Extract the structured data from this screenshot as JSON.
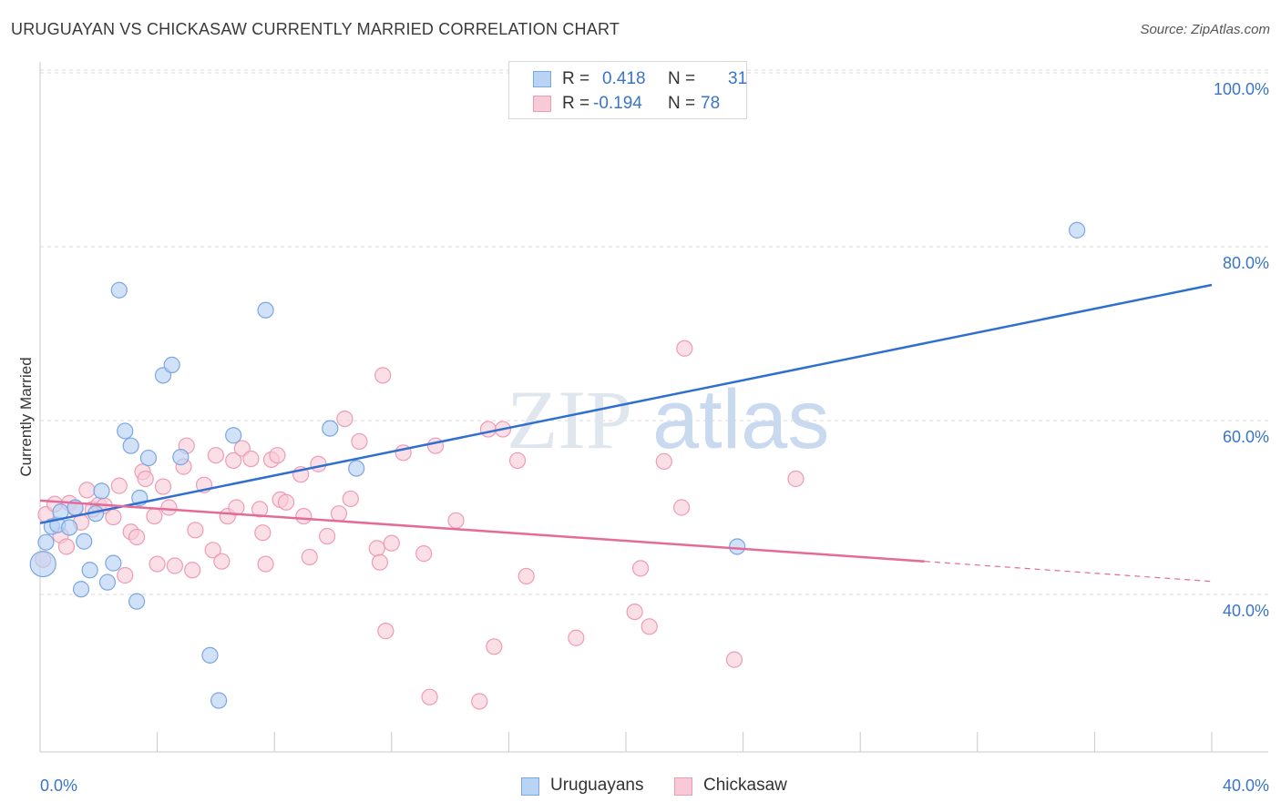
{
  "header": {
    "title": "URUGUAYAN VS CHICKASAW CURRENTLY MARRIED CORRELATION CHART",
    "source": "Source: ZipAtlas.com"
  },
  "watermark": {
    "zip": "ZIP",
    "atlas": "atlas"
  },
  "legend": {
    "rows": [
      {
        "r_label": "R =",
        "r_value": "0.418",
        "n_label": "N =",
        "n_value": "31"
      },
      {
        "r_label": "R =",
        "r_value": "-0.194",
        "n_label": "N =",
        "n_value": "78"
      }
    ]
  },
  "bottom_legend": {
    "items": [
      {
        "label": "Uruguayans"
      },
      {
        "label": "Chickasaw"
      }
    ]
  },
  "colors": {
    "blue_fill": "#b9d3f5",
    "blue_stroke": "#7aa6e2",
    "blue_line": "#2f6fcf",
    "pink_fill": "#f8c9d7",
    "pink_stroke": "#ee9bb4",
    "pink_line": "#e46b98",
    "tick_text": "#3a74c9",
    "grid": "#d9d9d9"
  },
  "chart_data": {
    "type": "scatter",
    "title": "URUGUAYAN VS CHICKASAW CURRENTLY MARRIED CORRELATION CHART",
    "xlabel": "",
    "ylabel": "Currently Married",
    "xlim": [
      0,
      40
    ],
    "ylim": [
      20,
      103
    ],
    "x_tick_labels": [
      "0.0%",
      "40.0%"
    ],
    "y_ticks": [
      40,
      60,
      80,
      100
    ],
    "y_tick_labels": [
      "40.0%",
      "60.0%",
      "80.0%",
      "100.0%"
    ],
    "grid": true,
    "legend_position": "top-center",
    "series": [
      {
        "name": "Uruguayans",
        "r": 0.418,
        "n": 31,
        "trend": {
          "x": [
            0,
            40
          ],
          "y": [
            48.2,
            75.6
          ]
        },
        "points": [
          [
            0.1,
            43.5
          ],
          [
            0.2,
            46.0
          ],
          [
            0.4,
            47.8
          ],
          [
            0.6,
            48.0
          ],
          [
            0.7,
            49.5
          ],
          [
            1.0,
            47.7
          ],
          [
            1.2,
            50.0
          ],
          [
            1.4,
            40.6
          ],
          [
            1.5,
            46.1
          ],
          [
            1.7,
            42.8
          ],
          [
            1.9,
            49.3
          ],
          [
            2.1,
            51.9
          ],
          [
            2.3,
            41.4
          ],
          [
            2.5,
            43.6
          ],
          [
            2.7,
            75.0
          ],
          [
            2.9,
            58.8
          ],
          [
            3.1,
            57.1
          ],
          [
            3.3,
            39.2
          ],
          [
            3.4,
            51.1
          ],
          [
            3.7,
            55.7
          ],
          [
            4.2,
            65.2
          ],
          [
            4.5,
            66.4
          ],
          [
            4.8,
            55.8
          ],
          [
            5.8,
            33.0
          ],
          [
            6.1,
            27.8
          ],
          [
            6.6,
            58.3
          ],
          [
            7.7,
            72.7
          ],
          [
            9.9,
            59.1
          ],
          [
            10.8,
            54.5
          ],
          [
            23.8,
            45.5
          ],
          [
            35.4,
            81.9
          ]
        ]
      },
      {
        "name": "Chickasaw",
        "r": -0.194,
        "n": 78,
        "trend": {
          "x": [
            0,
            30.2
          ],
          "y": [
            50.8,
            43.8
          ]
        },
        "trend_dashed": {
          "x": [
            30.2,
            40
          ],
          "y": [
            43.8,
            41.5
          ]
        },
        "points": [
          [
            0.1,
            44.0
          ],
          [
            0.2,
            49.2
          ],
          [
            0.5,
            50.4
          ],
          [
            0.7,
            46.8
          ],
          [
            0.9,
            45.5
          ],
          [
            1.0,
            50.5
          ],
          [
            1.2,
            49.9
          ],
          [
            1.4,
            48.3
          ],
          [
            1.6,
            52.0
          ],
          [
            1.8,
            49.8
          ],
          [
            2.0,
            50.3
          ],
          [
            2.2,
            50.2
          ],
          [
            2.5,
            48.9
          ],
          [
            2.7,
            52.5
          ],
          [
            2.9,
            42.2
          ],
          [
            3.1,
            47.2
          ],
          [
            3.3,
            46.6
          ],
          [
            3.5,
            54.1
          ],
          [
            3.6,
            53.3
          ],
          [
            3.9,
            49.0
          ],
          [
            4.0,
            43.5
          ],
          [
            4.2,
            52.4
          ],
          [
            4.4,
            50.0
          ],
          [
            4.6,
            43.3
          ],
          [
            4.9,
            54.7
          ],
          [
            5.0,
            57.1
          ],
          [
            5.2,
            42.8
          ],
          [
            5.3,
            47.4
          ],
          [
            5.6,
            52.6
          ],
          [
            5.9,
            45.1
          ],
          [
            6.0,
            56.0
          ],
          [
            6.2,
            43.8
          ],
          [
            6.4,
            49.0
          ],
          [
            6.6,
            55.4
          ],
          [
            6.7,
            50.0
          ],
          [
            6.9,
            56.8
          ],
          [
            7.2,
            55.6
          ],
          [
            7.5,
            49.8
          ],
          [
            7.6,
            47.1
          ],
          [
            7.7,
            43.5
          ],
          [
            7.9,
            55.5
          ],
          [
            8.1,
            56.0
          ],
          [
            8.2,
            50.9
          ],
          [
            8.4,
            50.6
          ],
          [
            8.9,
            53.8
          ],
          [
            9.0,
            49.0
          ],
          [
            9.2,
            44.3
          ],
          [
            9.5,
            55.0
          ],
          [
            9.8,
            46.7
          ],
          [
            10.2,
            49.3
          ],
          [
            10.6,
            51.0
          ],
          [
            10.4,
            60.2
          ],
          [
            10.9,
            57.6
          ],
          [
            11.5,
            45.3
          ],
          [
            11.6,
            43.7
          ],
          [
            11.7,
            65.2
          ],
          [
            11.8,
            35.8
          ],
          [
            12.0,
            45.9
          ],
          [
            12.4,
            56.3
          ],
          [
            13.1,
            44.7
          ],
          [
            13.3,
            28.2
          ],
          [
            13.5,
            57.1
          ],
          [
            14.2,
            48.5
          ],
          [
            15.0,
            27.7
          ],
          [
            15.3,
            59.0
          ],
          [
            15.5,
            34.0
          ],
          [
            15.8,
            59.0
          ],
          [
            16.3,
            55.4
          ],
          [
            16.6,
            42.1
          ],
          [
            18.3,
            35.0
          ],
          [
            20.3,
            38.0
          ],
          [
            20.8,
            36.3
          ],
          [
            21.3,
            55.3
          ],
          [
            21.9,
            50.0
          ],
          [
            22.0,
            68.3
          ],
          [
            23.7,
            32.5
          ],
          [
            25.8,
            53.3
          ],
          [
            20.5,
            43.0
          ]
        ]
      }
    ]
  }
}
